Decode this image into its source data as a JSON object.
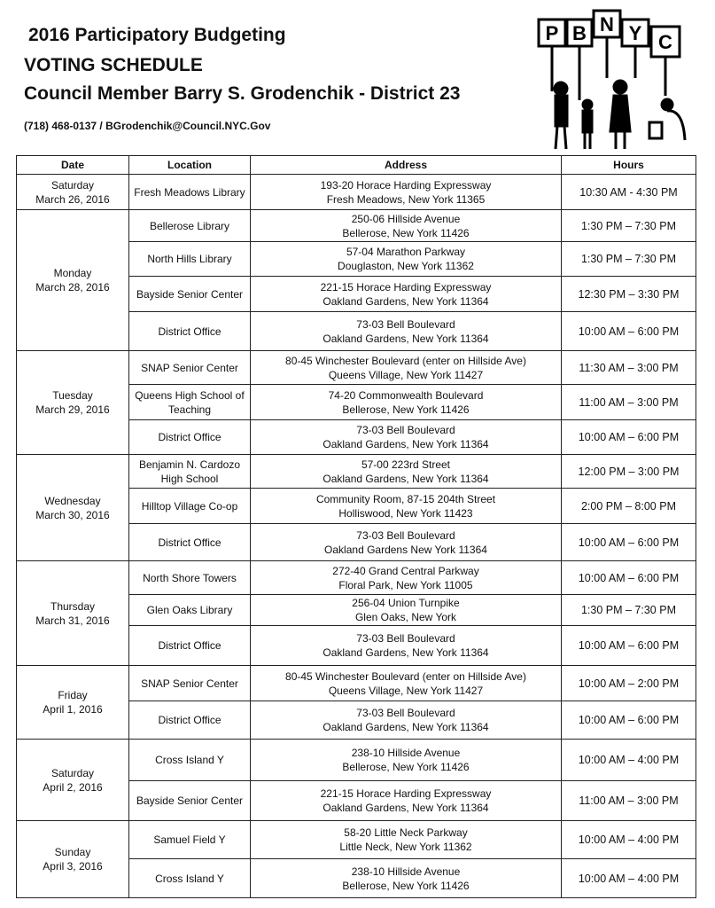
{
  "header": {
    "title_line1": "2016 Participatory Budgeting",
    "title_line2": "VOTING SCHEDULE",
    "title_line3": "Council Member Barry S. Grodenchik - District 23",
    "phone": "(718) 468-0137 /",
    "email": "BGrodenchik@Council.NYC.Gov",
    "logo_text": "PBNYC"
  },
  "table": {
    "columns": [
      "Date",
      "Location",
      "Address",
      "Hours"
    ],
    "days": [
      {
        "day": "Saturday",
        "date": "March 26, 2016",
        "sessions": [
          {
            "location": "Fresh Meadows Library",
            "address1": "193-20 Horace Harding Expressway",
            "address2": "Fresh Meadows, New York 11365",
            "hours": "10:30 AM - 4:30 PM"
          }
        ]
      },
      {
        "day": "Monday",
        "date": "March 28, 2016",
        "sessions": [
          {
            "location": "Bellerose Library",
            "address1": "250-06 Hillside Avenue",
            "address2": "Bellerose, New York 11426",
            "hours": "1:30 PM – 7:30 PM"
          },
          {
            "location": "North Hills Library",
            "address1": "57-04 Marathon Parkway",
            "address2": "Douglaston, New York 11362",
            "hours": "1:30 PM – 7:30 PM"
          },
          {
            "location": "Bayside Senior Center",
            "address1": "221-15 Horace Harding Expressway",
            "address2": "Oakland Gardens, New York 11364",
            "hours": "12:30 PM – 3:30 PM"
          },
          {
            "location": "District Office",
            "address1": "73-03 Bell Boulevard",
            "address2": "Oakland Gardens, New York 11364",
            "hours": "10:00 AM – 6:00 PM"
          }
        ]
      },
      {
        "day": "Tuesday",
        "date": "March 29, 2016",
        "sessions": [
          {
            "location": "SNAP Senior Center",
            "address1": "80-45 Winchester Boulevard (enter on Hillside Ave)",
            "address2": "Queens Village, New York 11427",
            "hours": "11:30 AM – 3:00 PM"
          },
          {
            "location": "Queens High School of Teaching",
            "address1": "74-20 Commonwealth Boulevard",
            "address2": "Bellerose, New York 11426",
            "hours": "11:00 AM – 3:00 PM"
          },
          {
            "location": "District Office",
            "address1": "73-03 Bell Boulevard",
            "address2": "Oakland Gardens, New York 11364",
            "hours": "10:00 AM – 6:00 PM"
          }
        ]
      },
      {
        "day": "Wednesday",
        "date": "March 30, 2016",
        "sessions": [
          {
            "location": "Benjamin N. Cardozo High School",
            "address1": "57-00 223rd Street",
            "address2": "Oakland Gardens, New York  11364",
            "hours": "12:00 PM – 3:00 PM"
          },
          {
            "location": "Hilltop Village Co-op",
            "address1": "Community Room, 87-15 204th Street",
            "address2": "Holliswood, New York 11423",
            "hours": "2:00 PM – 8:00 PM"
          },
          {
            "location": "District Office",
            "address1": "73-03 Bell Boulevard",
            "address2": "Oakland Gardens New York 11364",
            "hours": "10:00 AM – 6:00 PM"
          }
        ]
      },
      {
        "day": "Thursday",
        "date": "March 31, 2016",
        "sessions": [
          {
            "location": "North Shore Towers",
            "address1": "272-40 Grand Central Parkway",
            "address2": "Floral Park, New York 11005",
            "hours": "10:00 AM – 6:00 PM"
          },
          {
            "location": "Glen Oaks Library",
            "address1": "256-04 Union Turnpike",
            "address2": "Glen Oaks, New York",
            "hours": "1:30 PM – 7:30 PM"
          },
          {
            "location": "District Office",
            "address1": "73-03 Bell Boulevard",
            "address2": "Oakland Gardens, New York 11364",
            "hours": "10:00 AM – 6:00 PM"
          }
        ]
      },
      {
        "day": "Friday",
        "date": "April 1, 2016",
        "sessions": [
          {
            "location": "SNAP Senior Center",
            "address1": "80-45 Winchester Boulevard (enter on Hillside Ave)",
            "address2": "Queens Village, New York 11427",
            "hours": "10:00 AM – 2:00 PM"
          },
          {
            "location": "District Office",
            "address1": "73-03 Bell Boulevard",
            "address2": "Oakland Gardens, New York 11364",
            "hours": "10:00 AM – 6:00 PM"
          }
        ]
      },
      {
        "day": "Saturday",
        "date": "April 2, 2016",
        "sessions": [
          {
            "location": "Cross Island Y",
            "address1": "238-10 Hillside Avenue",
            "address2": "Bellerose, New York 11426",
            "hours": "10:00 AM – 4:00 PM"
          },
          {
            "location": "Bayside Senior Center",
            "address1": "221-15 Horace Harding Expressway",
            "address2": "Oakland Gardens, New York 11364",
            "hours": "11:00 AM – 3:00 PM"
          }
        ]
      },
      {
        "day": "Sunday",
        "date": "April 3, 2016",
        "sessions": [
          {
            "location": "Samuel Field Y",
            "address1": "58-20 Little Neck Parkway",
            "address2": "Little Neck, New York 11362",
            "hours": "10:00 AM – 4:00 PM"
          },
          {
            "location": "Cross Island Y",
            "address1": "238-10 Hillside Avenue",
            "address2": "Bellerose, New York 11426",
            "hours": "10:00 AM – 4:00 PM"
          }
        ]
      }
    ]
  }
}
